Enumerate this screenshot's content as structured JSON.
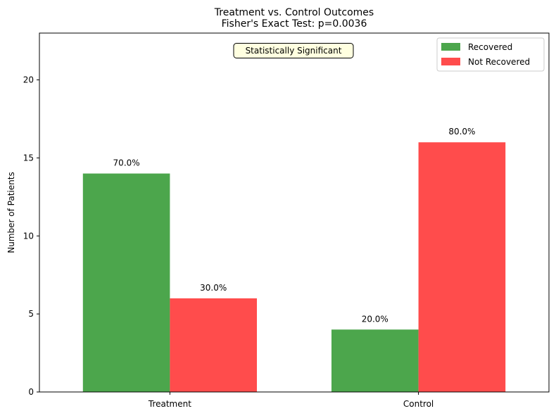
{
  "chart_data": {
    "type": "bar",
    "title": "Treatment vs. Control Outcomes",
    "subtitle": "Fisher's Exact Test: p=0.0036",
    "xlabel": "",
    "ylabel": "Number of Patients",
    "categories": [
      "Treatment",
      "Control"
    ],
    "series": [
      {
        "name": "Recovered",
        "color": "#4ca64c",
        "values": [
          14,
          4
        ],
        "labels": [
          "70.0%",
          "20.0%"
        ]
      },
      {
        "name": "Not Recovered",
        "color": "#ff4c4c",
        "values": [
          6,
          16
        ],
        "labels": [
          "30.0%",
          "80.0%"
        ]
      }
    ],
    "ylim": [
      0,
      23
    ],
    "yticks": [
      0,
      5,
      10,
      15,
      20
    ],
    "grid": false,
    "legend_position": "top-right",
    "annotation": {
      "text": "Statistically Significant",
      "background": "#ffffe0"
    }
  }
}
